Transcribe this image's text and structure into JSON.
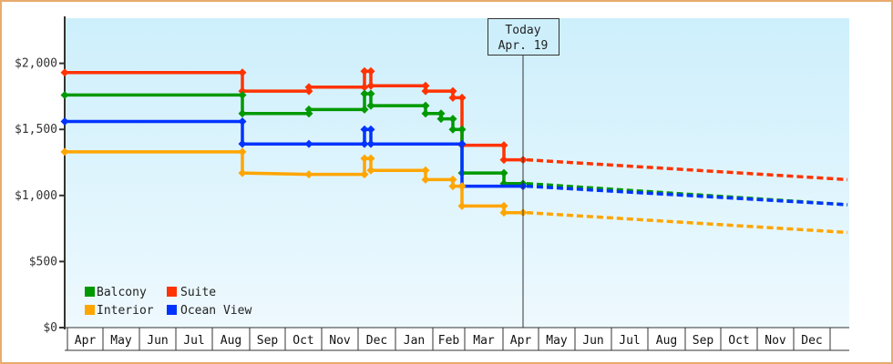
{
  "chart_data": {
    "type": "line",
    "title": "",
    "xlabel": "",
    "ylabel": "",
    "ylim": [
      0,
      2350
    ],
    "yticks": [
      "$0",
      "$500",
      "$1,000",
      "$1,500",
      "$2,000"
    ],
    "ytick_values": [
      0,
      500,
      1000,
      1500,
      2000
    ],
    "x_months": [
      "Apr",
      "May",
      "Jun",
      "Jul",
      "Aug",
      "Sep",
      "Oct",
      "Nov",
      "Dec",
      "Jan",
      "Feb",
      "Mar",
      "Apr",
      "May",
      "Jun",
      "Jul",
      "Aug",
      "Sep",
      "Oct",
      "Nov",
      "Dec"
    ],
    "today_marker": {
      "line1": "Today",
      "line2": "Apr. 19"
    },
    "legend_position": "lower-left",
    "grid": false,
    "step_series": [
      {
        "name": "Suite",
        "color": "#ff3300",
        "points": [
          [
            "Apr",
            1930
          ],
          [
            "Aug",
            1930
          ],
          [
            "Aug",
            1790
          ],
          [
            "Oct",
            1790
          ],
          [
            "Oct",
            1820
          ],
          [
            "Dec",
            1820
          ],
          [
            "Dec",
            1940
          ],
          [
            "Dec",
            1830
          ],
          [
            "Jan",
            1830
          ],
          [
            "Jan",
            1790
          ],
          [
            "Feb",
            1790
          ],
          [
            "Feb",
            1740
          ],
          [
            "Feb",
            1380
          ],
          [
            "Mar",
            1380
          ],
          [
            "Mar",
            1270
          ],
          [
            "Apr",
            1270
          ]
        ],
        "forecast": [
          [
            "Apr",
            1270
          ],
          [
            "Dec",
            1120
          ]
        ]
      },
      {
        "name": "Balcony",
        "color": "#009900",
        "points": [
          [
            "Apr",
            1760
          ],
          [
            "Aug",
            1760
          ],
          [
            "Aug",
            1620
          ],
          [
            "Oct",
            1620
          ],
          [
            "Oct",
            1650
          ],
          [
            "Dec",
            1650
          ],
          [
            "Dec",
            1770
          ],
          [
            "Dec",
            1680
          ],
          [
            "Jan",
            1680
          ],
          [
            "Jan",
            1620
          ],
          [
            "Feb",
            1570
          ],
          [
            "Feb",
            1500
          ],
          [
            "Feb",
            1170
          ],
          [
            "Mar",
            1170
          ],
          [
            "Mar",
            1090
          ],
          [
            "Apr",
            1090
          ]
        ],
        "forecast": [
          [
            "Apr",
            1090
          ],
          [
            "Dec",
            930
          ]
        ]
      },
      {
        "name": "Ocean View",
        "color": "#0033ff",
        "points": [
          [
            "Apr",
            1560
          ],
          [
            "Aug",
            1560
          ],
          [
            "Aug",
            1390
          ],
          [
            "Oct",
            1390
          ],
          [
            "Dec",
            1390
          ],
          [
            "Dec",
            1500
          ],
          [
            "Dec",
            1390
          ],
          [
            "Feb",
            1390
          ],
          [
            "Feb",
            1070
          ],
          [
            "Apr",
            1070
          ]
        ],
        "forecast": [
          [
            "Apr",
            1070
          ],
          [
            "Dec",
            930
          ]
        ]
      },
      {
        "name": "Interior",
        "color": "#ffa500",
        "points": [
          [
            "Apr",
            1330
          ],
          [
            "Aug",
            1330
          ],
          [
            "Aug",
            1170
          ],
          [
            "Oct",
            1160
          ],
          [
            "Dec",
            1160
          ],
          [
            "Dec",
            1280
          ],
          [
            "Dec",
            1190
          ],
          [
            "Jan",
            1190
          ],
          [
            "Jan",
            1120
          ],
          [
            "Feb",
            1120
          ],
          [
            "Feb",
            920
          ],
          [
            "Mar",
            920
          ],
          [
            "Mar",
            870
          ],
          [
            "Apr",
            870
          ]
        ],
        "forecast": [
          [
            "Apr",
            870
          ],
          [
            "Dec",
            720
          ]
        ]
      }
    ]
  },
  "legend": [
    {
      "label": "Balcony",
      "color": "#009900"
    },
    {
      "label": "Suite",
      "color": "#ff3300"
    },
    {
      "label": "Interior",
      "color": "#ffa500"
    },
    {
      "label": "Ocean View",
      "color": "#0033ff"
    }
  ]
}
